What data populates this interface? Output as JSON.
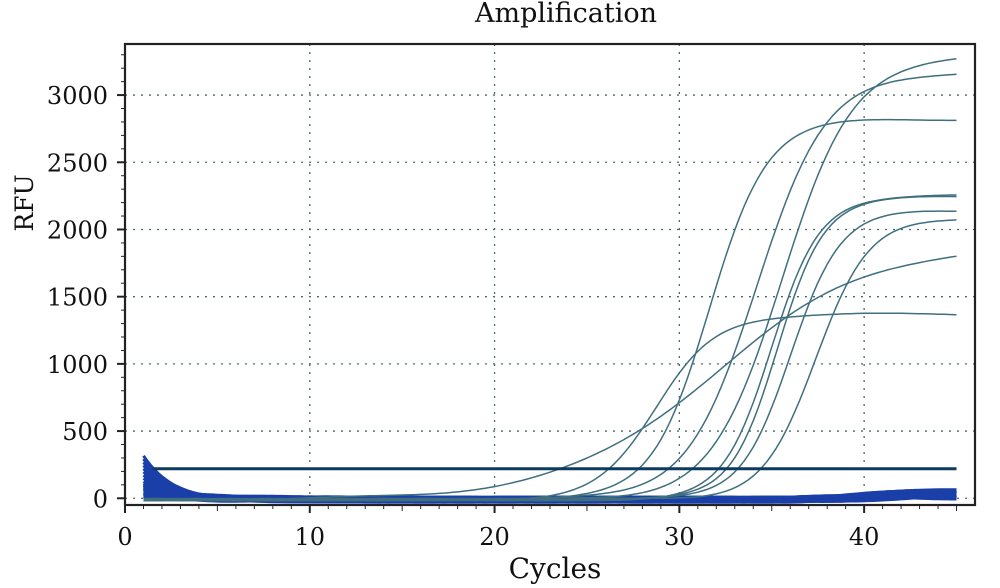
{
  "chart_data": {
    "type": "line",
    "title": "Amplification",
    "xlabel": "Cycles",
    "ylabel": "RFU",
    "xlim": [
      0,
      46
    ],
    "ylim": [
      -50,
      3380
    ],
    "xticks": [
      0,
      10,
      20,
      30,
      40
    ],
    "yticks": [
      0,
      500,
      1000,
      1500,
      2000,
      2500,
      3000
    ],
    "grid": true,
    "threshold": 220,
    "accent_color": "#1a3fa8",
    "curve_color": "#3f6f7f",
    "series": [
      {
        "plateau": 1380,
        "midpoint": 28.8,
        "slope": 1.6,
        "x": [
          1,
          45
        ]
      },
      {
        "plateau": 2830,
        "midpoint": 31.6,
        "slope": 1.55,
        "x": [
          1,
          45
        ]
      },
      {
        "plateau": 3180,
        "midpoint": 34.2,
        "slope": 1.9,
        "x": [
          1,
          45
        ]
      },
      {
        "plateau": 3300,
        "midpoint": 35.6,
        "slope": 1.9,
        "x": [
          1,
          45
        ]
      },
      {
        "plateau": 2260,
        "midpoint": 35.0,
        "slope": 1.3,
        "x": [
          1,
          45
        ]
      },
      {
        "plateau": 2250,
        "midpoint": 35.3,
        "slope": 1.25,
        "x": [
          1,
          45
        ]
      },
      {
        "plateau": 2150,
        "midpoint": 36.0,
        "slope": 1.35,
        "x": [
          1,
          45
        ]
      },
      {
        "plateau": 2100,
        "midpoint": 37.4,
        "slope": 1.45,
        "x": [
          1,
          45
        ]
      },
      {
        "plateau": 1900,
        "midpoint": 32.0,
        "slope": 4.2,
        "x": [
          1,
          45
        ]
      }
    ]
  }
}
